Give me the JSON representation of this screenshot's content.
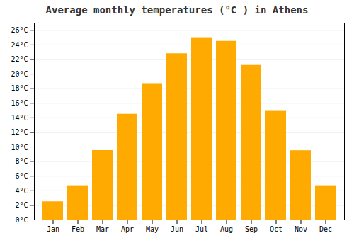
{
  "chart_data": {
    "type": "bar",
    "title": "Average monthly temperatures (°C ) in Athens",
    "categories": [
      "Jan",
      "Feb",
      "Mar",
      "Apr",
      "May",
      "Jun",
      "Jul",
      "Aug",
      "Sep",
      "Oct",
      "Nov",
      "Dec"
    ],
    "values": [
      2.5,
      4.7,
      9.6,
      14.5,
      18.7,
      22.8,
      25.0,
      24.5,
      21.2,
      15.0,
      9.5,
      4.7
    ],
    "color": "#FFAA00",
    "ylim": [
      0,
      27
    ],
    "yticks": [
      {
        "value": 0,
        "label": "0°C"
      },
      {
        "value": 2,
        "label": "2°C"
      },
      {
        "value": 4,
        "label": "4°C"
      },
      {
        "value": 6,
        "label": "6°C"
      },
      {
        "value": 8,
        "label": "8°C"
      },
      {
        "value": 10,
        "label": "10°C"
      },
      {
        "value": 12,
        "label": "12°C"
      },
      {
        "value": 14,
        "label": "14°C"
      },
      {
        "value": 16,
        "label": "16°C"
      },
      {
        "value": 18,
        "label": "18°C"
      },
      {
        "value": 20,
        "label": "20°C"
      },
      {
        "value": 22,
        "label": "22°C"
      },
      {
        "value": 24,
        "label": "24°C"
      },
      {
        "value": 26,
        "label": "26°C"
      }
    ],
    "grid": true
  }
}
